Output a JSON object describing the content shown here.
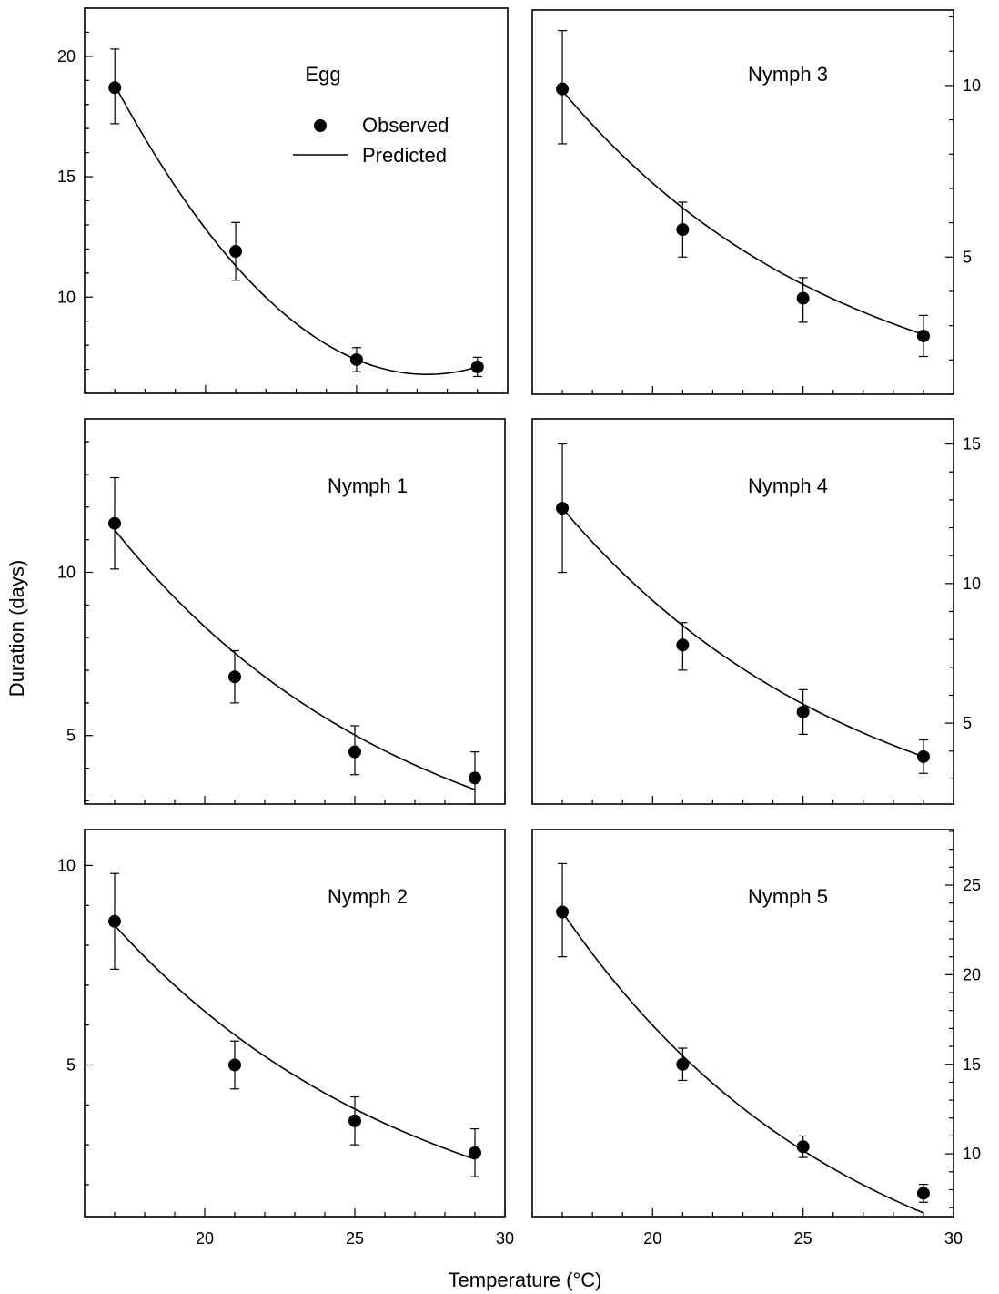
{
  "figure": {
    "ylabel": "Duration (days)",
    "xlabel": "Temperature (°C)",
    "legend": {
      "observed": "Observed",
      "predicted": "Predicted"
    }
  },
  "chart_data": [
    {
      "type": "scatter",
      "title": "Egg",
      "x": [
        17,
        21,
        25,
        29
      ],
      "y": [
        18.7,
        11.9,
        7.4,
        7.1
      ],
      "err_low": [
        17.2,
        10.7,
        6.9,
        6.7
      ],
      "err_high": [
        20.3,
        13.1,
        7.9,
        7.5
      ],
      "fit": {
        "type": "poly2",
        "points": [
          [
            17,
            18.8
          ],
          [
            21,
            11.8
          ],
          [
            25,
            7.4
          ],
          [
            29,
            7.1
          ]
        ]
      },
      "xlim": [
        16,
        30
      ],
      "ylim": [
        6,
        22
      ],
      "yticks": [
        10,
        15,
        20
      ],
      "yticks_minor": [
        6,
        7,
        8,
        9,
        11,
        12,
        13,
        14,
        16,
        17,
        18,
        19,
        21,
        22
      ],
      "yaxis_side": "left",
      "xticks": [
        20,
        25,
        30
      ],
      "xticklabels_shown": false
    },
    {
      "type": "scatter",
      "title": "Nymph 3",
      "x": [
        17,
        21,
        25,
        29
      ],
      "y": [
        9.9,
        5.8,
        3.8,
        2.7
      ],
      "err_low": [
        8.3,
        5.0,
        3.1,
        2.1
      ],
      "err_high": [
        11.6,
        6.6,
        4.4,
        3.3
      ],
      "fit": {
        "type": "exp",
        "a": 9.85,
        "b": 0.1065
      },
      "xlim": [
        16,
        30
      ],
      "ylim": [
        1,
        12.2
      ],
      "yticks": [
        5,
        10
      ],
      "yticks_minor": [
        1,
        2,
        3,
        4,
        6,
        7,
        8,
        9,
        11,
        12
      ],
      "yaxis_side": "right",
      "xticks": [
        20,
        25,
        30
      ],
      "xticklabels_shown": false
    },
    {
      "type": "scatter",
      "title": "Nymph 1",
      "x": [
        17,
        21,
        25,
        29
      ],
      "y": [
        11.5,
        6.8,
        4.5,
        3.7
      ],
      "err_low": [
        10.1,
        6.0,
        3.8,
        2.9
      ],
      "err_high": [
        12.9,
        7.6,
        5.3,
        4.5
      ],
      "fit": {
        "type": "exp",
        "a": 11.3,
        "b": 0.1015
      },
      "xlim": [
        16,
        30
      ],
      "ylim": [
        2.9,
        14.7
      ],
      "yticks": [
        5,
        10
      ],
      "yticks_minor": [
        3,
        4,
        6,
        7,
        8,
        9,
        11,
        12,
        13,
        14
      ],
      "yaxis_side": "left",
      "xticks": [
        20,
        25,
        30
      ],
      "xticklabels_shown": false
    },
    {
      "type": "scatter",
      "title": "Nymph 4",
      "x": [
        17,
        21,
        25,
        29
      ],
      "y": [
        12.7,
        7.8,
        5.4,
        3.8
      ],
      "err_low": [
        10.4,
        6.9,
        4.6,
        3.2
      ],
      "err_high": [
        15.0,
        8.6,
        6.2,
        4.4
      ],
      "fit": {
        "type": "exp",
        "a": 12.7,
        "b": 0.1005
      },
      "xlim": [
        16,
        30
      ],
      "ylim": [
        2.1,
        15.9
      ],
      "yticks": [
        5,
        10,
        15
      ],
      "yticks_minor": [
        3,
        4,
        6,
        7,
        8,
        9,
        11,
        12,
        13,
        14
      ],
      "yaxis_side": "right",
      "xticks": [
        20,
        25,
        30
      ],
      "xticklabels_shown": false
    },
    {
      "type": "scatter",
      "title": "Nymph 2",
      "x": [
        17,
        21,
        25,
        29
      ],
      "y": [
        8.6,
        5.0,
        3.6,
        2.8
      ],
      "err_low": [
        7.4,
        4.4,
        3.0,
        2.2
      ],
      "err_high": [
        9.8,
        5.6,
        4.2,
        3.4
      ],
      "fit": {
        "type": "exp",
        "a": 8.5,
        "b": 0.0975
      },
      "xlim": [
        16,
        30
      ],
      "ylim": [
        1.2,
        10.9
      ],
      "yticks": [
        5,
        10
      ],
      "yticks_minor": [
        2,
        3,
        4,
        6,
        7,
        8,
        9
      ],
      "yaxis_side": "left",
      "xticks": [
        20,
        25,
        30
      ],
      "xticklabels_shown": true
    },
    {
      "type": "scatter",
      "title": "Nymph 5",
      "x": [
        17,
        21,
        25,
        29
      ],
      "y": [
        23.5,
        15.0,
        10.4,
        7.8
      ],
      "err_low": [
        21.0,
        14.1,
        9.8,
        7.3
      ],
      "err_high": [
        26.2,
        15.9,
        11.0,
        8.3
      ],
      "fit": {
        "type": "exp",
        "a": 23.5,
        "b": 0.1045
      },
      "xlim": [
        16,
        30
      ],
      "ylim": [
        6.5,
        28.1
      ],
      "yticks": [
        10,
        15,
        20,
        25
      ],
      "yticks_minor": [
        7,
        8,
        9,
        11,
        12,
        13,
        14,
        16,
        17,
        18,
        19,
        21,
        22,
        23,
        24,
        26,
        27,
        28
      ],
      "yaxis_side": "right",
      "xticks": [
        20,
        25,
        30
      ],
      "xticklabels_shown": true
    }
  ]
}
